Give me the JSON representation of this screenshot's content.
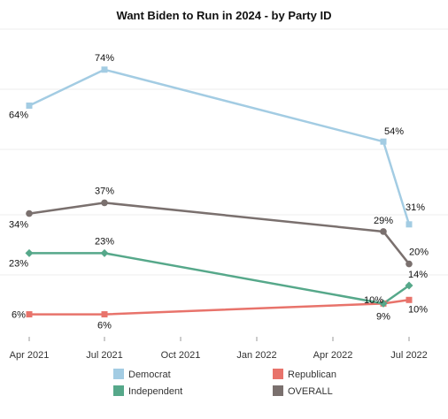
{
  "chart_data": {
    "type": "line",
    "title": "Want Biden to Run in 2024 - by Party ID",
    "xlabel": "",
    "ylabel": "",
    "x_ticks": [
      "Apr 2021",
      "Jul 2021",
      "Oct 2021",
      "Jan 2022",
      "Apr 2022",
      "Jul 2022"
    ],
    "x": [
      "Apr 2021",
      "Jul 2021",
      "Jun 2022",
      "Jul 2022"
    ],
    "ylim": [
      0,
      85
    ],
    "grid": false,
    "legend_position": "bottom",
    "series": [
      {
        "name": "Democrat",
        "color": "#a3cce3",
        "marker": "square",
        "values": [
          64,
          74,
          54,
          31
        ],
        "labels": [
          "64%",
          "74%",
          "54%",
          "31%"
        ]
      },
      {
        "name": "Republican",
        "color": "#e8736b",
        "marker": "square",
        "values": [
          6,
          6,
          9,
          10
        ],
        "labels": [
          "6%",
          "6%",
          "",
          "10%"
        ]
      },
      {
        "name": "Independent",
        "color": "#56a88a",
        "marker": "diamond",
        "values": [
          23,
          23,
          9,
          14
        ],
        "labels": [
          "23%",
          "23%",
          "9%",
          "14%"
        ]
      },
      {
        "name": "OVERALL",
        "color": "#7a706e",
        "marker": "circle",
        "values": [
          34,
          37,
          29,
          20
        ],
        "labels": [
          "34%",
          "37%",
          "29%",
          "20%"
        ]
      }
    ],
    "extra_labels": [
      "10%"
    ]
  }
}
